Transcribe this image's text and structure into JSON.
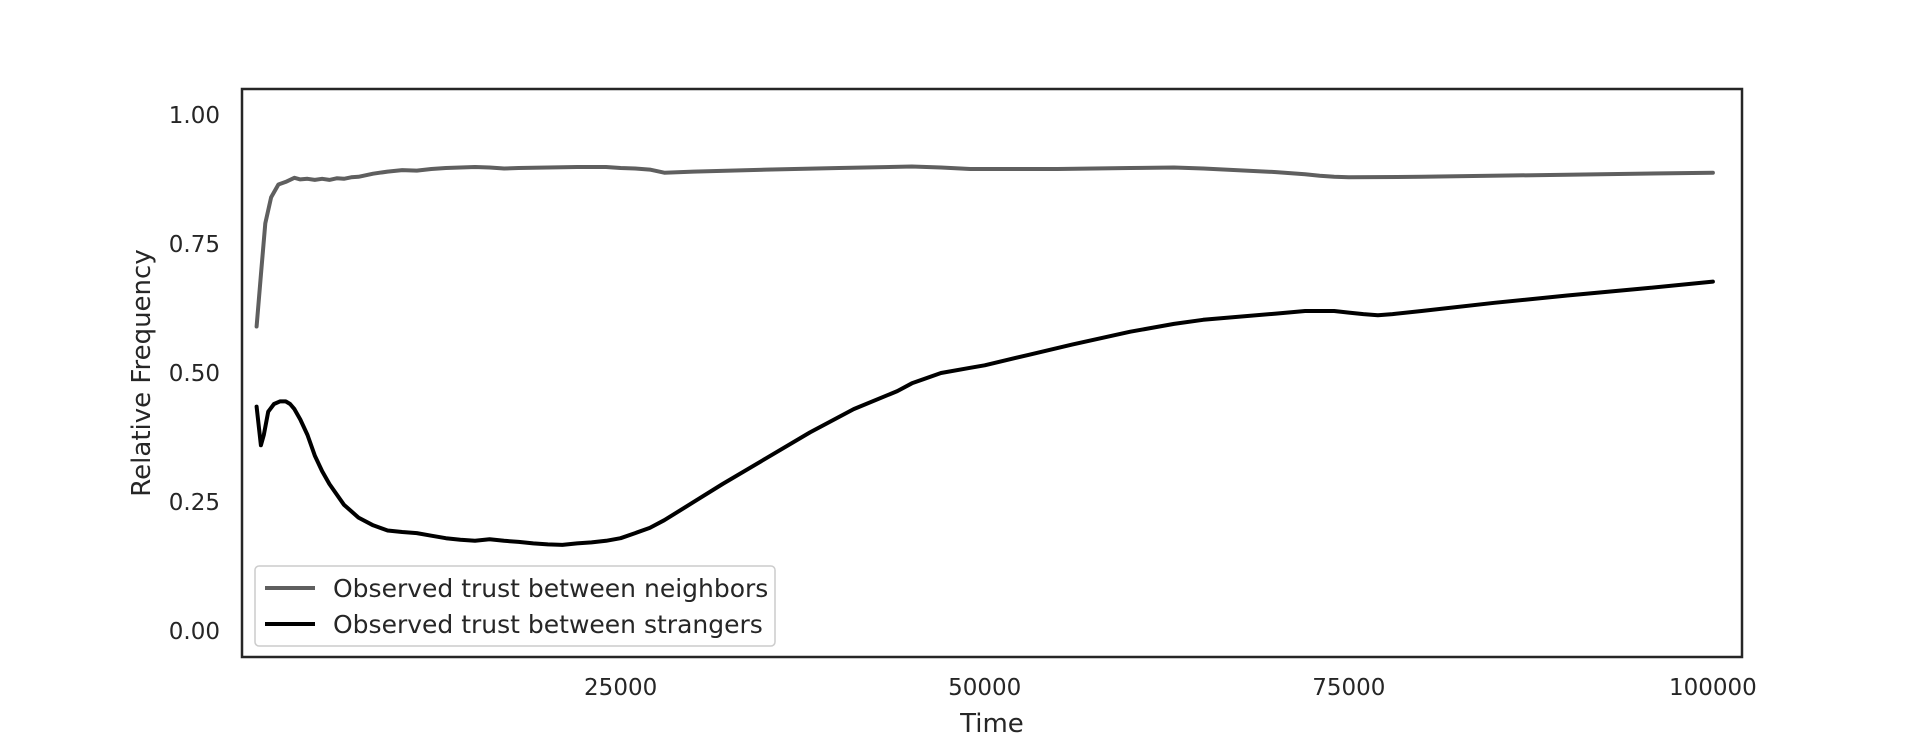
{
  "chart_data": {
    "type": "line",
    "title": "",
    "xlabel": "Time",
    "ylabel": "Relative Frequency",
    "xlim": [
      -1000,
      102000
    ],
    "ylim": [
      -0.05,
      1.05
    ],
    "x_ticks": [
      25000,
      50000,
      75000,
      100000
    ],
    "x_tick_labels": [
      "25000",
      "50000",
      "75000",
      "100000"
    ],
    "y_ticks": [
      0.0,
      0.25,
      0.5,
      0.75,
      1.0
    ],
    "y_tick_labels": [
      "0.00",
      "0.25",
      "0.50",
      "0.75",
      "1.00"
    ],
    "grid": false,
    "legend_position": "lower-left",
    "series": [
      {
        "name": "Observed trust between neighbors",
        "color": "#5f5f5f",
        "x": [
          0,
          300,
          600,
          1000,
          1500,
          2000,
          2600,
          3000,
          3500,
          4000,
          4500,
          5000,
          5500,
          6000,
          6500,
          7000,
          8000,
          9000,
          10000,
          11000,
          12000,
          13000,
          14000,
          15000,
          16000,
          17000,
          18000,
          20000,
          22000,
          24000,
          25000,
          26000,
          27000,
          28000,
          30000,
          35000,
          40000,
          45000,
          47000,
          49000,
          50000,
          55000,
          60000,
          63000,
          65000,
          70000,
          72000,
          73000,
          74000,
          75000,
          80000,
          90000,
          100000
        ],
        "y": [
          0.59,
          0.69,
          0.79,
          0.84,
          0.865,
          0.87,
          0.878,
          0.875,
          0.876,
          0.874,
          0.876,
          0.874,
          0.877,
          0.876,
          0.879,
          0.88,
          0.886,
          0.89,
          0.893,
          0.892,
          0.895,
          0.897,
          0.898,
          0.899,
          0.898,
          0.896,
          0.897,
          0.898,
          0.899,
          0.899,
          0.897,
          0.896,
          0.894,
          0.888,
          0.89,
          0.894,
          0.897,
          0.9,
          0.898,
          0.895,
          0.895,
          0.895,
          0.897,
          0.898,
          0.896,
          0.889,
          0.885,
          0.882,
          0.88,
          0.879,
          0.88,
          0.884,
          0.888
        ]
      },
      {
        "name": "Observed trust between strangers",
        "color": "#000000",
        "x": [
          0,
          300,
          500,
          800,
          1200,
          1600,
          2000,
          2300,
          2600,
          3000,
          3500,
          4000,
          4500,
          5000,
          6000,
          7000,
          8000,
          9000,
          10000,
          11000,
          12000,
          13000,
          14000,
          15000,
          16000,
          17000,
          18000,
          19000,
          20000,
          21000,
          22000,
          23000,
          24000,
          25000,
          26000,
          27000,
          28000,
          30000,
          32000,
          35000,
          38000,
          41000,
          44000,
          45000,
          47000,
          49000,
          50000,
          53000,
          56000,
          60000,
          63000,
          65000,
          70000,
          72000,
          74000,
          75000,
          76000,
          77000,
          78000,
          80000,
          85000,
          90000,
          95000,
          100000
        ],
        "y": [
          0.435,
          0.36,
          0.38,
          0.425,
          0.44,
          0.445,
          0.445,
          0.44,
          0.43,
          0.41,
          0.38,
          0.34,
          0.31,
          0.285,
          0.245,
          0.22,
          0.205,
          0.195,
          0.192,
          0.19,
          0.185,
          0.18,
          0.177,
          0.175,
          0.178,
          0.175,
          0.173,
          0.17,
          0.168,
          0.167,
          0.17,
          0.172,
          0.175,
          0.18,
          0.19,
          0.2,
          0.215,
          0.25,
          0.285,
          0.335,
          0.385,
          0.43,
          0.465,
          0.48,
          0.5,
          0.51,
          0.515,
          0.535,
          0.555,
          0.58,
          0.595,
          0.603,
          0.615,
          0.62,
          0.62,
          0.617,
          0.614,
          0.612,
          0.614,
          0.62,
          0.636,
          0.65,
          0.663,
          0.677
        ]
      }
    ]
  }
}
